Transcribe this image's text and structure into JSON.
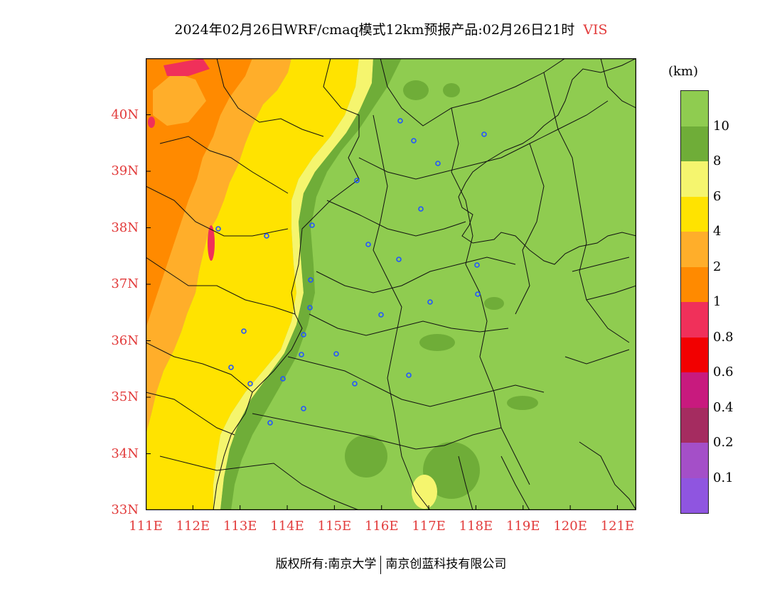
{
  "title": {
    "main": "2024年02月26日WRF/cmaq模式12km预报产品:02月26日21时",
    "variable": "VIS"
  },
  "map": {
    "lat_range": [
      33,
      41
    ],
    "lon_range": [
      111,
      121.4
    ],
    "lat_ticks": [
      "40N",
      "39N",
      "38N",
      "37N",
      "36N",
      "35N",
      "34N",
      "33N"
    ],
    "lon_ticks": [
      "111E",
      "112E",
      "113E",
      "114E",
      "115E",
      "116E",
      "117E",
      "118E",
      "119E",
      "120E",
      "121E"
    ],
    "station_marker_color": "#2255ff"
  },
  "legend": {
    "unit": "(km)",
    "colors": [
      "#8f55e0",
      "#a44fc8",
      "#a52c60",
      "#c81a7e",
      "#f20000",
      "#f0305a",
      "#ff8a00",
      "#ffae2a",
      "#ffe300",
      "#f5f56e",
      "#6fad38",
      "#8fcc50"
    ],
    "labels": [
      "0.1",
      "0.2",
      "0.4",
      "0.6",
      "0.8",
      "1",
      "2",
      "4",
      "6",
      "8",
      "10"
    ]
  },
  "footer": {
    "left": "版权所有:南京大学",
    "right": "南京创蓝科技有限公司"
  }
}
